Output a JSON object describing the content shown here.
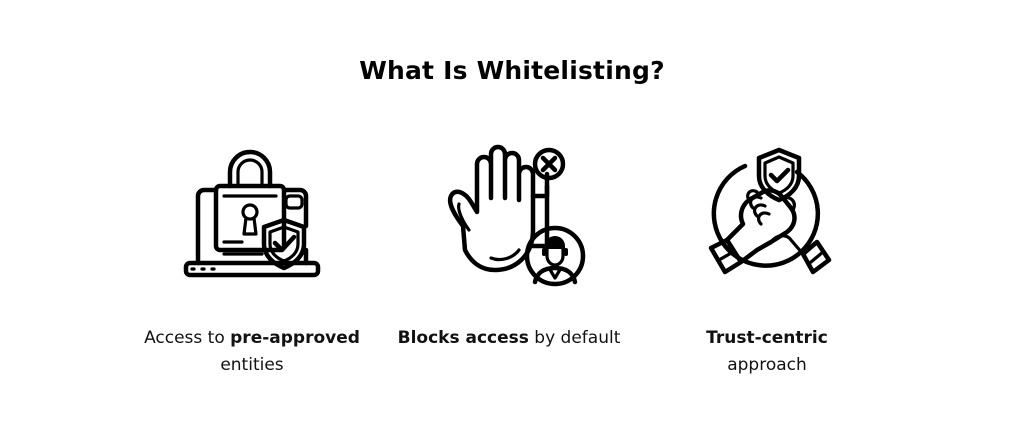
{
  "title": "What Is Whitelisting?",
  "features": [
    {
      "icon": "laptop-padlock-shield-icon",
      "caption_pre": "Access to ",
      "caption_bold": "pre-approved",
      "caption_post": "entities"
    },
    {
      "icon": "hand-stop-blocked-person-icon",
      "caption_pre": "",
      "caption_bold": "Blocks access",
      "caption_post": " by default"
    },
    {
      "icon": "handshake-shield-trust-icon",
      "caption_pre": "",
      "caption_bold": "Trust-centric",
      "caption_post": "approach"
    }
  ]
}
